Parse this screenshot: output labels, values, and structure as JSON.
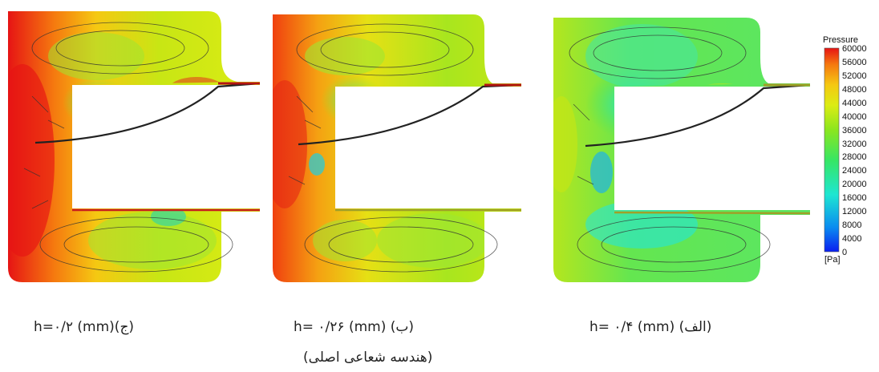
{
  "colors": {
    "scale": [
      "#0a1ef0",
      "#0a8cf0",
      "#1ee6d2",
      "#37e664",
      "#8ce61e",
      "#dcec14",
      "#f5c812",
      "#f5780f",
      "#e61414"
    ]
  },
  "legend": {
    "title": "Pressure",
    "unit": "[Pa]",
    "ticks": [
      "60000",
      "56000",
      "52000",
      "48000",
      "44000",
      "40000",
      "36000",
      "32000",
      "28000",
      "24000",
      "20000",
      "16000",
      "12000",
      "8000",
      "4000",
      "0"
    ]
  },
  "panels": [
    {
      "id": "c",
      "caption": "h=۰/۲ (mm)(ج)",
      "caption2": ""
    },
    {
      "id": "b",
      "caption": "h= ۰/۲۶ (mm) (ب)",
      "caption2": "(هندسه شعاعی اصلی)"
    },
    {
      "id": "a",
      "caption": "h= ۰/۴ (mm) (الف)",
      "caption2": ""
    }
  ]
}
